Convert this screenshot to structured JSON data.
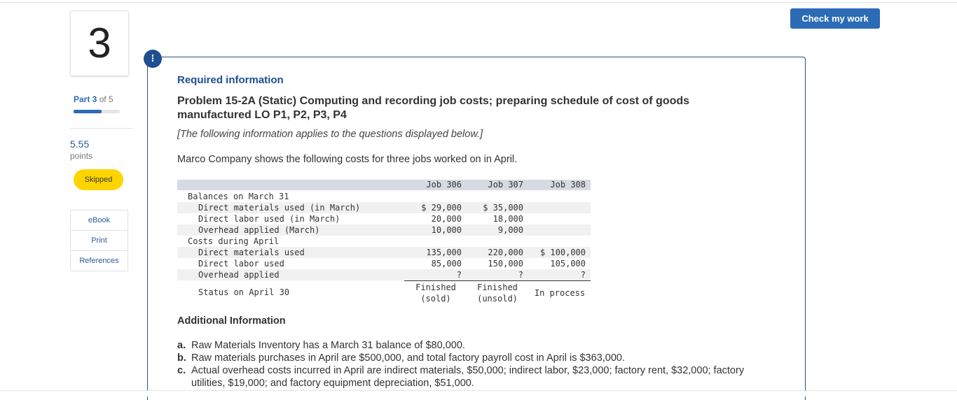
{
  "header": {
    "button": "Check my work"
  },
  "sidebar": {
    "question_number": "3",
    "part": "Part 3",
    "part_of": "of 5",
    "points_value": "5.55",
    "points_label": "points",
    "status": "Skipped",
    "links": [
      "eBook",
      "Print",
      "References"
    ]
  },
  "alert_icon": "!",
  "content": {
    "required": "Required information",
    "problem_title": "Problem 15-2A (Static) Computing and recording job costs; preparing schedule of cost of goods manufactured LO P1, P2, P3, P4",
    "note": "[The following information applies to the questions displayed below.]",
    "intro": "Marco Company shows the following costs for three jobs worked on in April.",
    "table": {
      "columns": [
        "Job 306",
        "Job 307",
        "Job 308"
      ],
      "sections": [
        {
          "heading": "Balances on March 31",
          "rows": [
            {
              "label": "Direct materials used (in March)",
              "values": [
                "$ 29,000",
                "$ 35,000"
              ]
            },
            {
              "label": "Direct labor used (in March)",
              "values": [
                "20,000",
                "18,000"
              ]
            },
            {
              "label": "Overhead applied (March)",
              "values": [
                "10,000",
                "9,000"
              ]
            }
          ]
        },
        {
          "heading": "Costs during April",
          "rows": [
            {
              "label": "Direct materials used",
              "values": [
                "135,000",
                "220,000",
                "$ 100,000"
              ]
            },
            {
              "label": "Direct labor used",
              "values": [
                "85,000",
                "150,000",
                "105,000"
              ]
            },
            {
              "label": "Overhead applied",
              "values": [
                "?",
                "?",
                "?"
              ]
            }
          ]
        }
      ],
      "status": {
        "label": "Status on April 30",
        "values": [
          [
            "Finished",
            "(sold)"
          ],
          [
            "Finished",
            "(unsold)"
          ],
          [
            "In process"
          ]
        ]
      }
    },
    "additional": {
      "heading": "Additional Information",
      "items": [
        {
          "letter": "a.",
          "text": "Raw Materials Inventory has a March 31 balance of $80,000."
        },
        {
          "letter": "b.",
          "text": "Raw materials purchases in April are $500,000, and total factory payroll cost in April is $363,000."
        },
        {
          "letter": "c.",
          "text": "Actual overhead costs incurred in April are indirect materials, $50,000; indirect labor, $23,000; factory rent, $32,000; factory utilities, $19,000; and factory equipment depreciation, $51,000."
        }
      ]
    }
  }
}
